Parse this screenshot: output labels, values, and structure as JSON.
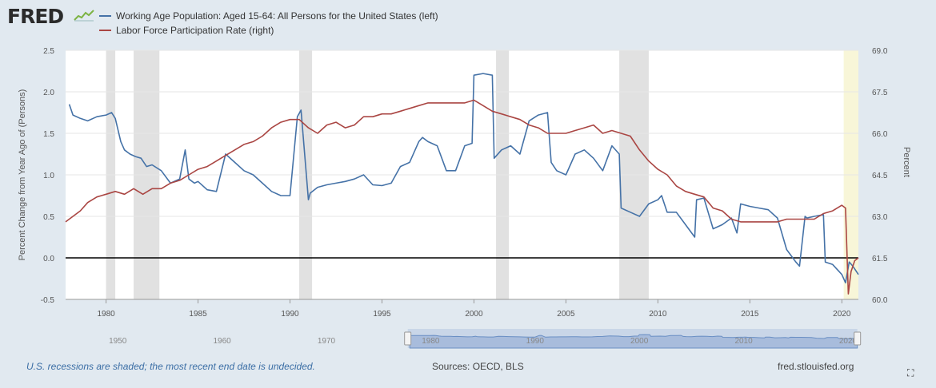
{
  "app": {
    "logo_text": "FRED",
    "logo_icon": "fred-sparkline-icon",
    "footer_note": "U.S. recessions are shaded; the most recent end date is undecided.",
    "sources": "Sources: OECD, BLS",
    "site": "fred.stlouisfed.org",
    "fullscreen_icon": "fullscreen-icon"
  },
  "colors": {
    "series1": "#4572a7",
    "series2": "#aa4643",
    "recession": "#e1e1e1",
    "recession_recent": "#f8f6d8",
    "zero_line": "#000000",
    "navigator_fill": "#a8bcdc"
  },
  "chart_data": {
    "type": "line",
    "title": "",
    "legend": [
      "Working Age Population: Aged 15-64: All Persons for the United States (left)",
      "Labor Force Participation Rate (right)"
    ],
    "legend_position": "top-left",
    "ylabel_left": "Percent Change from Year Ago of (Persons)",
    "ylabel_right": "Percent",
    "ylim_left": [
      -0.5,
      2.5
    ],
    "ylim_right": [
      60.0,
      69.0
    ],
    "xlim": [
      1977.8,
      2020.9
    ],
    "left_ticks": [
      "2.5",
      "2.0",
      "1.5",
      "1.0",
      "0.5",
      "0.0",
      "-0.5"
    ],
    "right_ticks": [
      "69.0",
      "67.5",
      "66.0",
      "64.5",
      "63.0",
      "61.5",
      "60.0"
    ],
    "x_ticks": [
      "1980",
      "1985",
      "1990",
      "1995",
      "2000",
      "2005",
      "2010",
      "2015",
      "2020"
    ],
    "navigator_ticks": [
      "1950",
      "1960",
      "1970",
      "1980",
      "1990",
      "2000",
      "2010",
      "2020"
    ],
    "grid": "horizontal",
    "recessions": [
      [
        1980.0,
        1980.5
      ],
      [
        1981.5,
        1982.9
      ],
      [
        1990.5,
        1991.2
      ],
      [
        2001.2,
        2001.9
      ],
      [
        2007.9,
        2009.5
      ],
      [
        2020.1,
        2020.9,
        "undecided"
      ]
    ],
    "series": [
      {
        "name": "Working Age Population: Aged 15-64: All Persons for the United States (left)",
        "axis": "left",
        "x": [
          1978.0,
          1978.2,
          1978.6,
          1979.0,
          1979.5,
          1980.0,
          1980.3,
          1980.5,
          1980.8,
          1981.0,
          1981.3,
          1981.6,
          1981.9,
          1982.2,
          1982.5,
          1983.0,
          1983.5,
          1984.0,
          1984.3,
          1984.5,
          1984.8,
          1985.0,
          1985.5,
          1986.0,
          1986.5,
          1987.0,
          1987.5,
          1988.0,
          1988.5,
          1989.0,
          1989.5,
          1990.0,
          1990.4,
          1990.6,
          1991.0,
          1991.1,
          1991.5,
          1992.0,
          1992.5,
          1993.0,
          1993.5,
          1994.0,
          1994.5,
          1995.0,
          1995.5,
          1996.0,
          1996.5,
          1997.0,
          1997.2,
          1997.5,
          1998.0,
          1998.5,
          1999.0,
          1999.5,
          1999.9,
          2000.0,
          2000.5,
          2001.0,
          2001.1,
          2001.5,
          2002.0,
          2002.5,
          2003.0,
          2003.5,
          2004.0,
          2004.2,
          2004.5,
          2005.0,
          2005.5,
          2006.0,
          2006.5,
          2007.0,
          2007.5,
          2007.9,
          2008.0,
          2008.5,
          2009.0,
          2009.5,
          2010.0,
          2010.2,
          2010.5,
          2011.0,
          2011.5,
          2012.0,
          2012.1,
          2012.5,
          2013.0,
          2013.5,
          2014.0,
          2014.3,
          2014.5,
          2015.0,
          2015.5,
          2016.0,
          2016.5,
          2017.0,
          2017.5,
          2017.7,
          2018.0,
          2018.1,
          2018.5,
          2019.0,
          2019.1,
          2019.5,
          2020.0,
          2020.2,
          2020.4,
          2020.6,
          2020.9
        ],
        "values": [
          1.85,
          1.72,
          1.68,
          1.65,
          1.7,
          1.72,
          1.75,
          1.68,
          1.4,
          1.3,
          1.25,
          1.22,
          1.2,
          1.1,
          1.12,
          1.05,
          0.9,
          0.95,
          1.3,
          0.95,
          0.9,
          0.92,
          0.82,
          0.8,
          1.25,
          1.15,
          1.05,
          1.0,
          0.9,
          0.8,
          0.75,
          0.75,
          1.7,
          1.78,
          0.7,
          0.78,
          0.85,
          0.88,
          0.9,
          0.92,
          0.95,
          1.0,
          0.88,
          0.87,
          0.9,
          1.1,
          1.15,
          1.4,
          1.45,
          1.4,
          1.35,
          1.05,
          1.05,
          1.35,
          1.38,
          2.2,
          2.22,
          2.2,
          1.2,
          1.3,
          1.35,
          1.25,
          1.65,
          1.72,
          1.75,
          1.15,
          1.05,
          1.0,
          1.25,
          1.3,
          1.2,
          1.05,
          1.35,
          1.25,
          0.6,
          0.55,
          0.5,
          0.65,
          0.7,
          0.75,
          0.55,
          0.55,
          0.4,
          0.25,
          0.7,
          0.72,
          0.35,
          0.4,
          0.48,
          0.3,
          0.65,
          0.62,
          0.6,
          0.58,
          0.48,
          0.1,
          -0.05,
          -0.1,
          0.5,
          0.48,
          0.5,
          0.52,
          -0.05,
          -0.08,
          -0.2,
          -0.3,
          -0.05,
          -0.1,
          -0.2
        ]
      },
      {
        "name": "Labor Force Participation Rate (right)",
        "axis": "right",
        "x": [
          1977.8,
          1978.2,
          1978.6,
          1979.0,
          1979.5,
          1980.0,
          1980.5,
          1981.0,
          1981.5,
          1982.0,
          1982.5,
          1983.0,
          1983.5,
          1984.0,
          1984.5,
          1985.0,
          1985.5,
          1986.0,
          1986.5,
          1987.0,
          1987.5,
          1988.0,
          1988.5,
          1989.0,
          1989.5,
          1990.0,
          1990.5,
          1991.0,
          1991.5,
          1992.0,
          1992.5,
          1993.0,
          1993.5,
          1994.0,
          1994.5,
          1995.0,
          1995.5,
          1996.0,
          1996.5,
          1997.0,
          1997.5,
          1998.0,
          1998.5,
          1999.0,
          1999.5,
          2000.0,
          2000.5,
          2001.0,
          2001.5,
          2002.0,
          2002.5,
          2003.0,
          2003.5,
          2004.0,
          2004.5,
          2005.0,
          2005.5,
          2006.0,
          2006.5,
          2007.0,
          2007.5,
          2008.0,
          2008.5,
          2009.0,
          2009.5,
          2010.0,
          2010.5,
          2011.0,
          2011.5,
          2012.0,
          2012.5,
          2013.0,
          2013.5,
          2014.0,
          2014.5,
          2015.0,
          2015.5,
          2016.0,
          2016.5,
          2017.0,
          2017.5,
          2018.0,
          2018.5,
          2019.0,
          2019.5,
          2020.0,
          2020.2,
          2020.35,
          2020.5,
          2020.7,
          2020.9
        ],
        "values": [
          62.8,
          63.0,
          63.2,
          63.5,
          63.7,
          63.8,
          63.9,
          63.8,
          64.0,
          63.8,
          64.0,
          64.0,
          64.2,
          64.3,
          64.5,
          64.7,
          64.8,
          65.0,
          65.2,
          65.4,
          65.6,
          65.7,
          65.9,
          66.2,
          66.4,
          66.5,
          66.5,
          66.2,
          66.0,
          66.3,
          66.4,
          66.2,
          66.3,
          66.6,
          66.6,
          66.7,
          66.7,
          66.8,
          66.9,
          67.0,
          67.1,
          67.1,
          67.1,
          67.1,
          67.1,
          67.2,
          67.0,
          66.8,
          66.7,
          66.6,
          66.5,
          66.3,
          66.2,
          66.0,
          66.0,
          66.0,
          66.1,
          66.2,
          66.3,
          66.0,
          66.1,
          66.0,
          65.9,
          65.4,
          65.0,
          64.7,
          64.5,
          64.1,
          63.9,
          63.8,
          63.7,
          63.3,
          63.2,
          62.9,
          62.8,
          62.8,
          62.8,
          62.8,
          62.8,
          62.9,
          62.9,
          62.9,
          62.9,
          63.1,
          63.2,
          63.4,
          63.3,
          60.2,
          61.0,
          61.4,
          61.5
        ]
      }
    ]
  }
}
